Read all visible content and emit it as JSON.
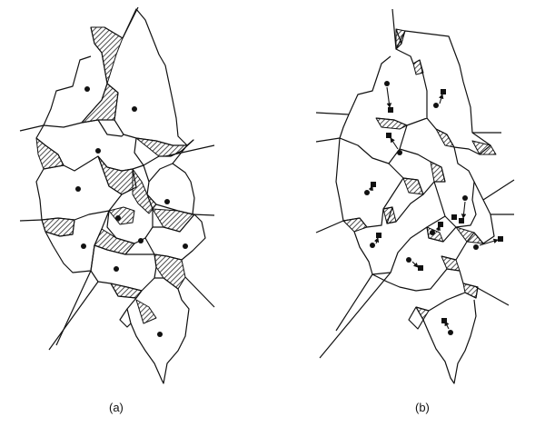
{
  "panels": [
    {
      "label": "(a)"
    },
    {
      "label": "(b)"
    }
  ],
  "colors": {
    "stroke": "#111111",
    "hatch": "#222222",
    "background": "#ffffff"
  }
}
